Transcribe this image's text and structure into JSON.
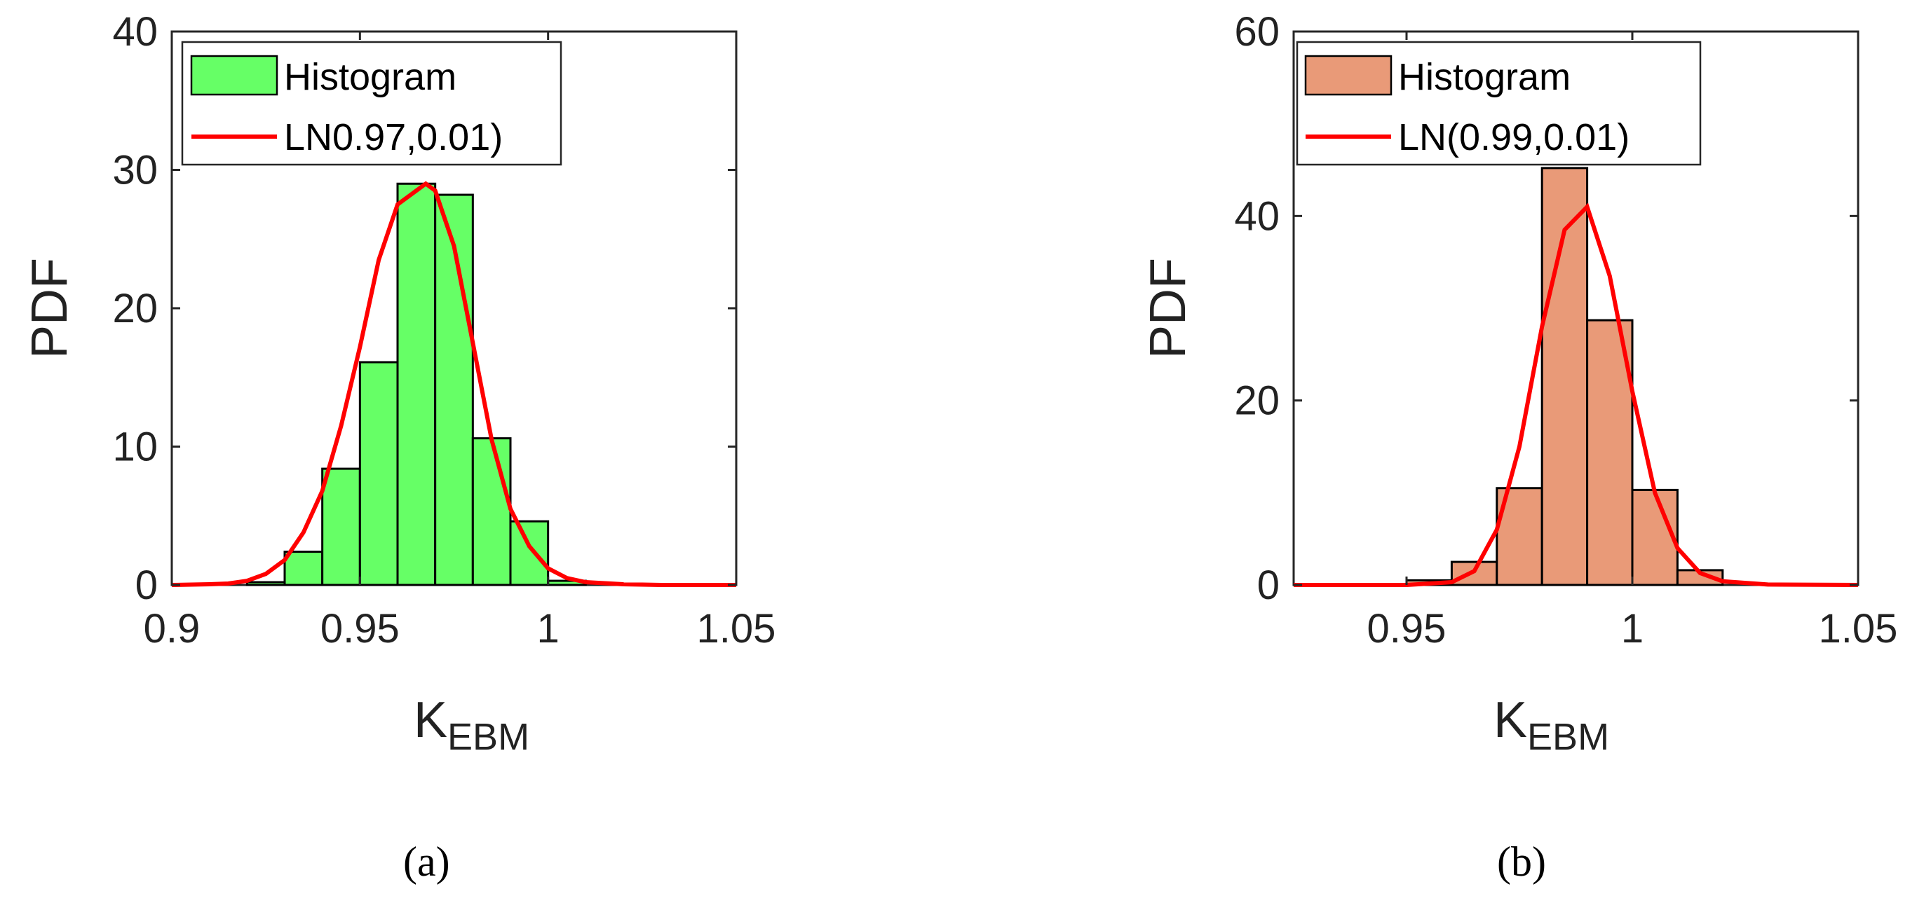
{
  "chart_data": [
    {
      "type": "bar",
      "panel_label": "(a)",
      "colors": {
        "bar": "#66ff66",
        "line": "#ff0000"
      },
      "xlim": [
        0.9,
        1.05
      ],
      "ylim": [
        0,
        40
      ],
      "xticks": [
        "0.9",
        "0.95",
        "1",
        "1.05"
      ],
      "yticks": [
        "0",
        "10",
        "20",
        "30",
        "40"
      ],
      "xlabel": "K",
      "xlabel_sub": "EBM",
      "ylabel": "PDF",
      "legend": {
        "placement": "top-left",
        "bar_entry": "Histogram",
        "line_entry": "LN0.97,0.01)"
      },
      "bins": {
        "edges": [
          0.92,
          0.93,
          0.94,
          0.95,
          0.96,
          0.97,
          0.98,
          0.99,
          1.0,
          1.01
        ],
        "values": [
          0.2,
          2.4,
          8.4,
          16.1,
          29.0,
          28.2,
          10.6,
          4.6,
          0.3
        ]
      },
      "curve": {
        "x": [
          0.9,
          0.91,
          0.915,
          0.92,
          0.925,
          0.93,
          0.935,
          0.94,
          0.945,
          0.95,
          0.955,
          0.96,
          0.9675,
          0.97,
          0.975,
          0.98,
          0.985,
          0.99,
          0.995,
          1.0,
          1.005,
          1.01,
          1.02,
          1.03,
          1.05
        ],
        "y": [
          0.0,
          0.05,
          0.1,
          0.3,
          0.8,
          1.8,
          3.8,
          6.8,
          11.5,
          17.2,
          23.5,
          27.5,
          29.0,
          28.5,
          24.5,
          17.5,
          10.5,
          5.5,
          2.8,
          1.2,
          0.5,
          0.2,
          0.05,
          0.0,
          0.0
        ]
      }
    },
    {
      "type": "bar",
      "panel_label": "(b)",
      "colors": {
        "bar": "#e99a78",
        "line": "#ff0000"
      },
      "xlim": [
        0.925,
        1.05
      ],
      "ylim": [
        0,
        60
      ],
      "xticks": [
        "0.95",
        "1",
        "1.05"
      ],
      "yticks": [
        "0",
        "20",
        "40",
        "60"
      ],
      "xlabel": "K",
      "xlabel_sub": "EBM",
      "ylabel": "PDF",
      "legend": {
        "placement": "top-left",
        "bar_entry": "Histogram",
        "line_entry": "LN(0.99,0.01)"
      },
      "bins": {
        "edges": [
          0.95,
          0.96,
          0.97,
          0.98,
          0.99,
          1.0,
          1.01,
          1.02
        ],
        "values": [
          0.5,
          2.5,
          10.5,
          45.2,
          28.7,
          10.3,
          1.6
        ]
      },
      "curve": {
        "x": [
          0.925,
          0.95,
          0.96,
          0.965,
          0.97,
          0.975,
          0.98,
          0.985,
          0.99,
          0.995,
          1.0,
          1.005,
          1.01,
          1.015,
          1.02,
          1.03,
          1.05
        ],
        "y": [
          0.0,
          0.0,
          0.3,
          1.5,
          6.0,
          15.0,
          28.0,
          38.5,
          41.0,
          33.5,
          21.0,
          10.0,
          4.0,
          1.3,
          0.4,
          0.05,
          0.0
        ]
      }
    }
  ]
}
